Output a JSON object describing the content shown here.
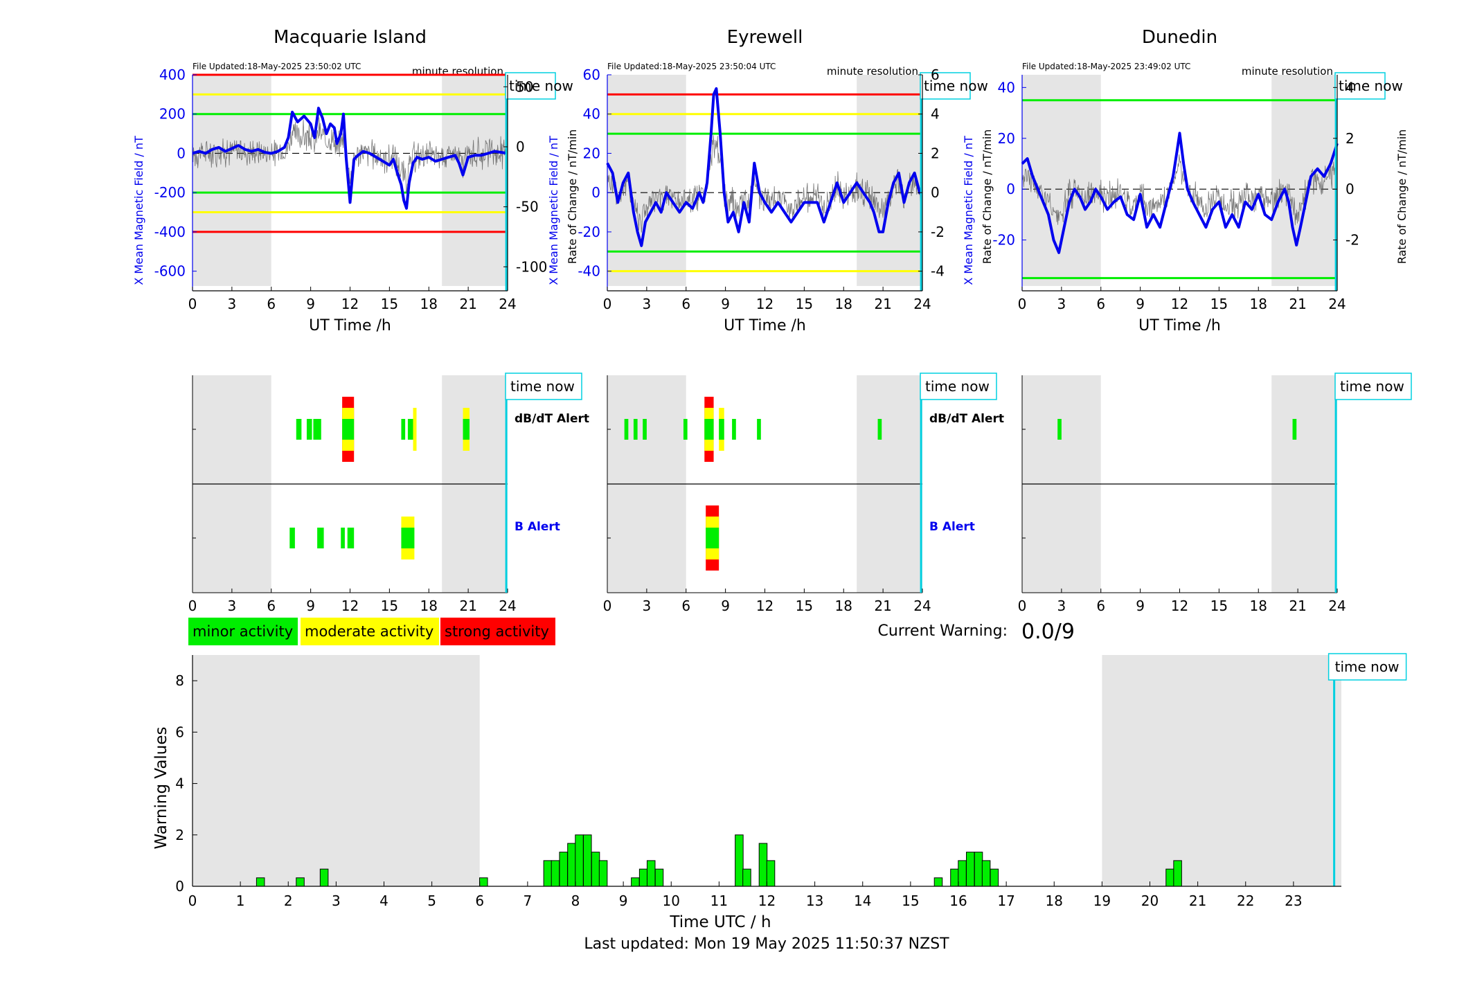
{
  "stations": [
    {
      "name": "Macquarie Island",
      "file_updated": "File Updated:18-May-2025 23:50:02 UTC"
    },
    {
      "name": "Eyrewell",
      "file_updated": "File Updated:18-May-2025 23:50:04 UTC"
    },
    {
      "name": "Dunedin",
      "file_updated": "File Updated:18-May-2025 23:49:02 UTC"
    }
  ],
  "labels": {
    "resolution": "minute resolution",
    "time_now": "time now",
    "ut_time": "UT Time /h",
    "left_ylabel": "X Mean Magnetic Field / nT",
    "right_ylabel": "Rate of Change / nT/min",
    "dbdt_alert": "dB/dT Alert",
    "b_alert": "B Alert",
    "current_warning_label": "Current Warning:",
    "current_warning_value": "0.0/9",
    "warning_xlabel": "Time UTC / h",
    "warning_ylabel": "Warning Values",
    "last_updated": "Last updated: Mon 19 May 2025 11:50:37 NZST"
  },
  "legend": [
    {
      "label": "minor activity",
      "color": "#00ee00"
    },
    {
      "label": "moderate activity",
      "color": "#ffff00"
    },
    {
      "label": "strong activity",
      "color": "#ff0000"
    }
  ],
  "colors": {
    "mean": "#0000ee",
    "roc": "#555555",
    "shade": "#e5e5e5",
    "now": "#00d0e0",
    "green": "#00ee00",
    "yellow": "#ffff00",
    "red": "#ff0000"
  },
  "chart_data": [
    {
      "type": "line",
      "title": "Macquarie Island",
      "xlabel": "UT Time /h",
      "ylabel": "X Mean Magnetic Field / nT",
      "ylabel_right": "Rate of Change / nT/min",
      "xlim": [
        0,
        24
      ],
      "ylim": [
        -700,
        400
      ],
      "ylim_right": [
        -120,
        60
      ],
      "xticks": [
        0,
        3,
        6,
        9,
        12,
        15,
        18,
        21,
        24
      ],
      "yticks": [
        -600,
        -400,
        -200,
        0,
        200,
        400
      ],
      "yticks_right": [
        -100,
        -50,
        0,
        50
      ],
      "night_shading": [
        [
          0,
          6
        ],
        [
          19,
          24
        ]
      ],
      "time_now": 23.9,
      "threshold_lines": [
        {
          "value": 400,
          "color": "red"
        },
        {
          "value": 300,
          "color": "yellow"
        },
        {
          "value": 200,
          "color": "green"
        },
        {
          "value": -200,
          "color": "green"
        },
        {
          "value": -300,
          "color": "yellow"
        },
        {
          "value": -400,
          "color": "red"
        }
      ],
      "series": [
        {
          "name": "X Mean Magnetic Field / nT",
          "x": [
            0,
            0.5,
            1,
            1.5,
            2,
            2.5,
            3,
            3.5,
            4,
            4.5,
            5,
            5.5,
            6,
            6.5,
            7,
            7.3,
            7.6,
            8,
            8.5,
            9,
            9.3,
            9.6,
            9.9,
            10.2,
            10.5,
            10.8,
            11,
            11.3,
            11.5,
            11.7,
            12,
            12.3,
            12.6,
            13,
            13.5,
            14,
            14.5,
            15,
            15.3,
            15.6,
            15.9,
            16.1,
            16.3,
            16.5,
            16.8,
            17.1,
            17.5,
            18,
            18.5,
            19,
            19.5,
            20,
            20.3,
            20.6,
            21,
            21.5,
            22,
            22.5,
            23,
            23.5,
            24
          ],
          "values": [
            0,
            10,
            0,
            20,
            30,
            10,
            25,
            40,
            20,
            10,
            20,
            5,
            0,
            10,
            30,
            80,
            210,
            160,
            190,
            150,
            80,
            230,
            180,
            100,
            150,
            130,
            50,
            100,
            200,
            -20,
            -250,
            -30,
            -10,
            10,
            0,
            -20,
            -40,
            -60,
            -30,
            -100,
            -160,
            -240,
            -280,
            -150,
            -50,
            -20,
            -30,
            -20,
            -40,
            -30,
            -20,
            -10,
            -50,
            -110,
            -20,
            -10,
            -10,
            0,
            10,
            5,
            0
          ]
        }
      ]
    },
    {
      "type": "line",
      "title": "Eyrewell",
      "xlabel": "UT Time /h",
      "ylabel": "X Mean Magnetic Field / nT",
      "ylabel_right": "Rate of Change / nT/min",
      "xlim": [
        0,
        24
      ],
      "ylim": [
        -50,
        60
      ],
      "ylim_right": [
        -5,
        6
      ],
      "xticks": [
        0,
        3,
        6,
        9,
        12,
        15,
        18,
        21,
        24
      ],
      "yticks": [
        -40,
        -20,
        0,
        20,
        40,
        60
      ],
      "yticks_right": [
        -4,
        -2,
        0,
        2,
        4,
        6
      ],
      "night_shading": [
        [
          0,
          6
        ],
        [
          19,
          24
        ]
      ],
      "time_now": 23.9,
      "threshold_lines": [
        {
          "value": 50,
          "color": "red"
        },
        {
          "value": 40,
          "color": "yellow"
        },
        {
          "value": 30,
          "color": "green"
        },
        {
          "value": -30,
          "color": "green"
        },
        {
          "value": -40,
          "color": "yellow"
        }
      ],
      "series": [
        {
          "name": "X Mean Magnetic Field / nT",
          "x": [
            0,
            0.4,
            0.8,
            1.2,
            1.6,
            2,
            2.3,
            2.6,
            2.9,
            3.3,
            3.7,
            4.1,
            4.5,
            5,
            5.5,
            6,
            6.5,
            7,
            7.3,
            7.6,
            7.9,
            8.1,
            8.3,
            8.6,
            8.9,
            9.2,
            9.6,
            10,
            10.4,
            10.8,
            11.2,
            11.6,
            12,
            12.5,
            13,
            13.5,
            14,
            14.5,
            15,
            15.5,
            16,
            16.5,
            17,
            17.5,
            18,
            18.5,
            19,
            19.5,
            20,
            20.3,
            20.7,
            21,
            21.4,
            21.8,
            22.2,
            22.6,
            23,
            23.4,
            23.8,
            24
          ],
          "values": [
            15,
            10,
            -5,
            5,
            10,
            -10,
            -20,
            -27,
            -15,
            -10,
            -5,
            -10,
            0,
            -5,
            -10,
            -5,
            -8,
            0,
            -5,
            5,
            30,
            50,
            53,
            30,
            0,
            -15,
            -10,
            -20,
            -5,
            -15,
            15,
            0,
            -5,
            -10,
            -5,
            -10,
            -15,
            -10,
            -5,
            -5,
            -5,
            -15,
            -5,
            5,
            -5,
            0,
            5,
            0,
            -5,
            -10,
            -20,
            -20,
            -5,
            5,
            10,
            -5,
            5,
            10,
            0,
            0
          ]
        }
      ]
    },
    {
      "type": "line",
      "title": "Dunedin",
      "xlabel": "UT Time /h",
      "ylabel": "X Mean Magnetic Field / nT",
      "ylabel_right": "Rate of Change / nT/min",
      "xlim": [
        0,
        24
      ],
      "ylim": [
        -40,
        45
      ],
      "ylim_right": [
        -4,
        4.5
      ],
      "xticks": [
        0,
        3,
        6,
        9,
        12,
        15,
        18,
        21,
        24
      ],
      "yticks": [
        -20,
        0,
        20,
        40
      ],
      "yticks_right": [
        -2,
        0,
        2,
        4
      ],
      "night_shading": [
        [
          0,
          6
        ],
        [
          19,
          24
        ]
      ],
      "time_now": 23.9,
      "threshold_lines": [
        {
          "value": 35,
          "color": "green"
        },
        {
          "value": -35,
          "color": "green"
        }
      ],
      "series": [
        {
          "name": "X Mean Magnetic Field / nT",
          "x": [
            0,
            0.4,
            0.8,
            1.2,
            1.6,
            2,
            2.4,
            2.8,
            3.2,
            3.6,
            4,
            4.4,
            4.8,
            5.2,
            5.6,
            6,
            6.5,
            7,
            7.5,
            8,
            8.5,
            9,
            9.5,
            10,
            10.5,
            11,
            11.5,
            11.8,
            12,
            12.3,
            12.6,
            13,
            13.5,
            14,
            14.5,
            15,
            15.5,
            16,
            16.5,
            17,
            17.5,
            18,
            18.5,
            19,
            19.5,
            20,
            20.3,
            20.6,
            20.9,
            21.2,
            21.6,
            22,
            22.5,
            23,
            23.5,
            24
          ],
          "values": [
            10,
            12,
            5,
            0,
            -5,
            -10,
            -20,
            -25,
            -15,
            -5,
            0,
            -3,
            -8,
            -5,
            0,
            -3,
            -8,
            -5,
            -3,
            -10,
            -12,
            -2,
            -15,
            -10,
            -15,
            -5,
            5,
            15,
            22,
            10,
            0,
            -5,
            -10,
            -15,
            -8,
            -5,
            -15,
            -10,
            -15,
            -5,
            -8,
            -2,
            -10,
            -12,
            -5,
            0,
            -5,
            -15,
            -22,
            -15,
            -5,
            5,
            8,
            5,
            10,
            18
          ]
        }
      ]
    },
    {
      "type": "bar",
      "title": "",
      "xlabel": "Time UTC / h",
      "ylabel": "Warning Values",
      "xlim": [
        0,
        24
      ],
      "ylim": [
        0,
        9
      ],
      "xticks": [
        0,
        1,
        2,
        3,
        4,
        5,
        6,
        7,
        8,
        9,
        10,
        11,
        12,
        13,
        14,
        15,
        16,
        17,
        18,
        19,
        20,
        21,
        22,
        23
      ],
      "yticks": [
        0,
        2,
        4,
        6,
        8
      ],
      "night_shading": [
        [
          0,
          6
        ],
        [
          19,
          24
        ]
      ],
      "time_now": 23.85,
      "bar_width_h": 0.1667,
      "bars": {
        "x": [
          1.42,
          2.25,
          2.75,
          6.08,
          7.42,
          7.58,
          7.75,
          7.92,
          8.08,
          8.25,
          8.42,
          8.58,
          9.25,
          9.42,
          9.58,
          9.75,
          11.42,
          11.58,
          11.92,
          12.08,
          15.58,
          15.92,
          16.08,
          16.25,
          16.42,
          16.58,
          16.75,
          20.42,
          20.58
        ],
        "values": [
          0.33,
          0.33,
          0.67,
          0.33,
          1.0,
          1.0,
          1.33,
          1.67,
          2.0,
          2.0,
          1.33,
          1.0,
          0.33,
          0.67,
          1.0,
          0.67,
          2.0,
          0.67,
          1.67,
          1.0,
          0.33,
          0.67,
          1.0,
          1.33,
          1.33,
          1.0,
          0.67,
          0.67,
          1.0
        ]
      }
    }
  ],
  "alerts": [
    {
      "dbdt": [
        [
          7.9,
          8.3,
          "g"
        ],
        [
          8.7,
          9.1,
          "g"
        ],
        [
          9.2,
          9.8,
          "g"
        ],
        [
          11.4,
          12.3,
          "g"
        ],
        [
          11.4,
          12.3,
          "y"
        ],
        [
          11.4,
          12.3,
          "r"
        ],
        [
          15.9,
          16.2,
          "g"
        ],
        [
          16.4,
          16.8,
          "g"
        ],
        [
          16.8,
          17.0,
          "y"
        ],
        [
          20.6,
          21.1,
          "g"
        ],
        [
          20.6,
          21.1,
          "y"
        ]
      ],
      "b": [
        [
          7.4,
          7.8,
          "g"
        ],
        [
          9.5,
          10.0,
          "g"
        ],
        [
          11.3,
          11.6,
          "g"
        ],
        [
          11.8,
          12.3,
          "g"
        ],
        [
          15.9,
          16.9,
          "g"
        ],
        [
          15.9,
          16.9,
          "y"
        ]
      ]
    },
    {
      "dbdt": [
        [
          1.3,
          1.6,
          "g"
        ],
        [
          2.0,
          2.3,
          "g"
        ],
        [
          2.7,
          3.0,
          "g"
        ],
        [
          5.8,
          6.1,
          "g"
        ],
        [
          7.4,
          8.1,
          "g"
        ],
        [
          7.4,
          8.1,
          "y"
        ],
        [
          7.4,
          8.1,
          "r"
        ],
        [
          8.5,
          8.9,
          "g"
        ],
        [
          8.5,
          8.9,
          "y"
        ],
        [
          9.5,
          9.8,
          "g"
        ],
        [
          11.4,
          11.7,
          "g"
        ],
        [
          20.6,
          20.9,
          "g"
        ]
      ],
      "b": [
        [
          7.5,
          8.5,
          "g"
        ],
        [
          7.5,
          8.5,
          "y"
        ],
        [
          7.5,
          8.5,
          "r"
        ]
      ]
    },
    {
      "dbdt": [
        [
          2.7,
          3.0,
          "g"
        ],
        [
          20.6,
          20.9,
          "g"
        ]
      ],
      "b": []
    }
  ]
}
